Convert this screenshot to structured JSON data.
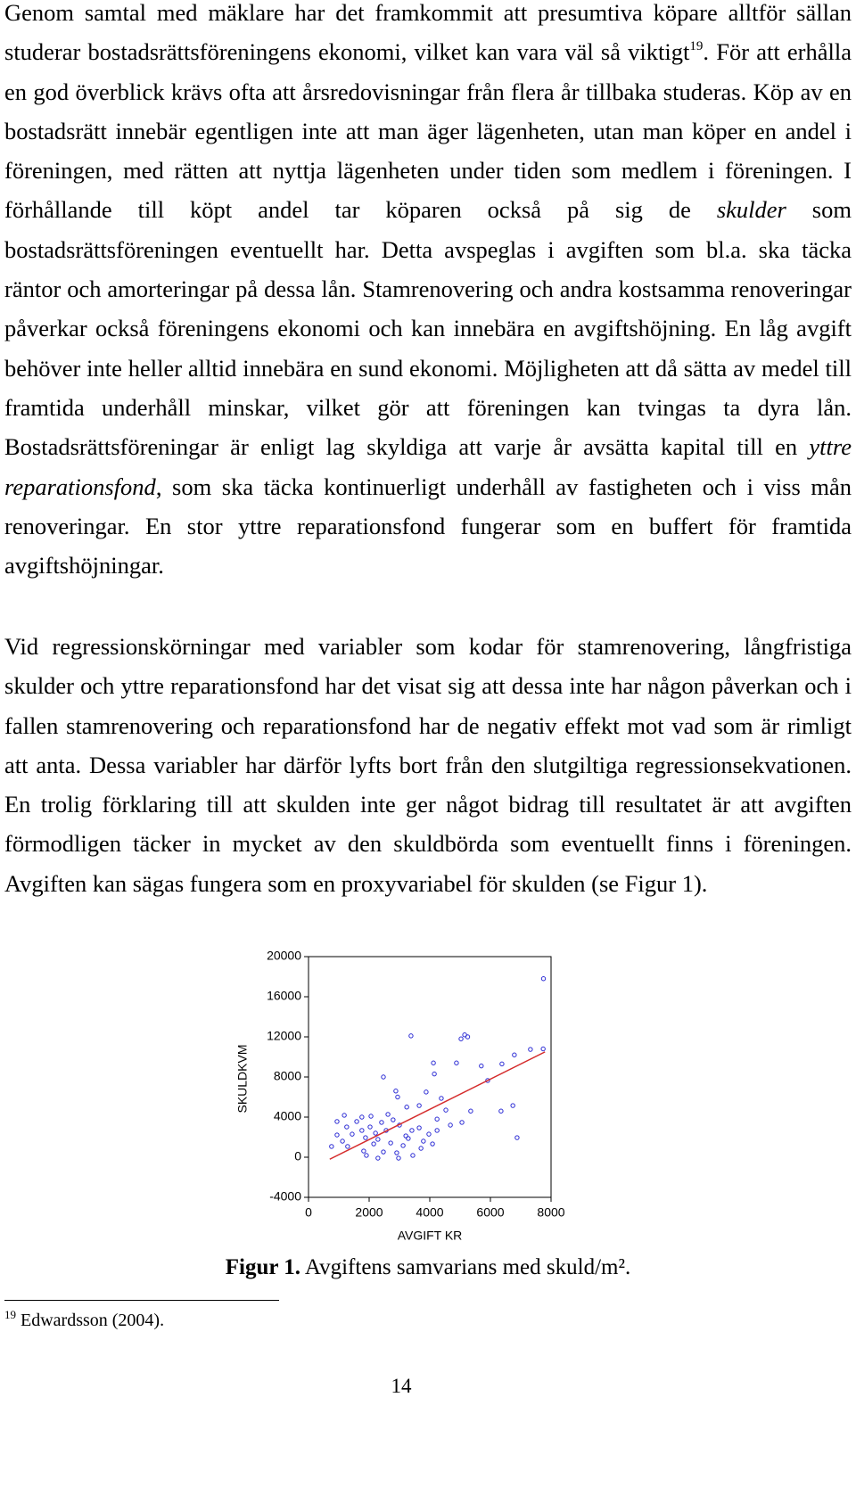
{
  "paragraphs": [
    {
      "runs": [
        {
          "text": "Genom samtal med mäklare har det framkommit att presumtiva köpare alltför sällan studerar bostadsrättsföreningens ekonomi, vilket kan vara väl så viktigt"
        },
        {
          "text": "19",
          "style": "sup"
        },
        {
          "text": ". För att erhålla en god överblick krävs ofta att årsredovisningar från flera år tillbaka studeras. Köp av en bostadsrätt innebär egentligen inte att man äger lägenheten, utan man köper en andel i föreningen, med rätten att nyttja lägenheten under tiden som medlem i föreningen. I förhållande till köpt andel tar köparen också på sig de "
        },
        {
          "text": "skulder",
          "style": "italic"
        },
        {
          "text": " som bostadsrättsföreningen eventuellt har. Detta avspeglas i avgiften som bl.a. ska täcka räntor och amorteringar på dessa lån. Stamrenovering och andra kostsamma renoveringar påverkar också föreningens ekonomi och kan innebära en avgiftshöjning. En låg avgift behöver inte heller alltid innebära en sund ekonomi. Möjligheten att då sätta av medel till framtida underhåll minskar, vilket gör att föreningen kan tvingas ta dyra lån. Bostadsrättsföreningar är enligt lag skyldiga att varje år avsätta kapital till en "
        },
        {
          "text": "yttre reparationsfond",
          "style": "italic"
        },
        {
          "text": ", som ska täcka kontinuerligt underhåll av fastigheten och i viss mån renoveringar. En stor yttre reparationsfond fungerar som en buffert för framtida avgiftshöjningar."
        }
      ]
    },
    {
      "runs": [
        {
          "text": "Vid regressionskörningar med variabler som kodar för stamrenovering, långfristiga skulder och yttre reparationsfond har det visat sig att dessa inte har någon påverkan och i fallen stamrenovering och reparationsfond har de negativ effekt mot vad som är rimligt att anta. Dessa variabler har därför lyfts bort från den slutgiltiga regressionsekvationen. En trolig förklaring till att skulden inte ger något bidrag till resultatet är att avgiften förmodligen täcker in mycket av den skuldbörda som eventuellt finns i föreningen. Avgiften kan sägas fungera som en proxyvariabel för skulden (se Figur 1)."
        }
      ]
    }
  ],
  "chart_data": {
    "type": "scatter",
    "x_label": "AVGIFT KR",
    "y_label": "SKULDKVM",
    "xlim": [
      0,
      8000
    ],
    "ylim": [
      -4000,
      20000
    ],
    "xticks": [
      0,
      2000,
      4000,
      6000,
      8000
    ],
    "yticks": [
      -4000,
      0,
      4000,
      8000,
      12000,
      16000,
      20000
    ],
    "series": [
      {
        "color": "#2a2ad4",
        "x": [
          7750,
          3380,
          5150,
          5250,
          5030,
          7740,
          7320,
          2470,
          5700,
          5910,
          6790,
          6380,
          4120,
          4880,
          4150,
          2880,
          2940,
          3650,
          4380,
          4530,
          3880,
          3240,
          6350,
          6740,
          6880,
          5350,
          5060,
          4680,
          4240,
          3970,
          3650,
          3410,
          3210,
          3000,
          2790,
          2560,
          2410,
          2210,
          2030,
          1880,
          1760,
          1590,
          1440,
          1260,
          1120,
          940,
          760,
          1290,
          1820,
          2150,
          2470,
          2710,
          2910,
          3120,
          3440,
          3710,
          2290,
          2060,
          1760,
          2620,
          1910,
          2290,
          2970,
          3290,
          4090,
          3790,
          4240,
          940,
          1180
        ],
        "y": [
          17800,
          12100,
          12200,
          12000,
          11800,
          10800,
          10750,
          8000,
          9100,
          7650,
          10200,
          9300,
          9400,
          9400,
          8300,
          6600,
          6000,
          5150,
          5870,
          4700,
          6500,
          5000,
          4600,
          5150,
          1950,
          4600,
          3470,
          3200,
          3800,
          2300,
          2930,
          2670,
          2130,
          3200,
          3730,
          2670,
          3470,
          2400,
          3020,
          1950,
          2670,
          3560,
          2300,
          3020,
          1600,
          2220,
          1070,
          1070,
          620,
          1330,
          530,
          1420,
          440,
          1160,
          180,
          890,
          1780,
          4090,
          4000,
          4270,
          180,
          -90,
          -90,
          1870,
          1330,
          1600,
          2670,
          3560,
          4180
        ]
      }
    ],
    "fit_line": {
      "color": "#d42a2a",
      "x": [
        700,
        7800
      ],
      "y": [
        -200,
        10500
      ]
    }
  },
  "caption": {
    "runs": [
      {
        "text": "Figur 1.",
        "style": "bold"
      },
      {
        "text": " Avgiftens samvarians med skuld/m²."
      }
    ]
  },
  "footnote": {
    "marker": "19",
    "text": "Edwardsson (2004)."
  },
  "page_number": "14"
}
